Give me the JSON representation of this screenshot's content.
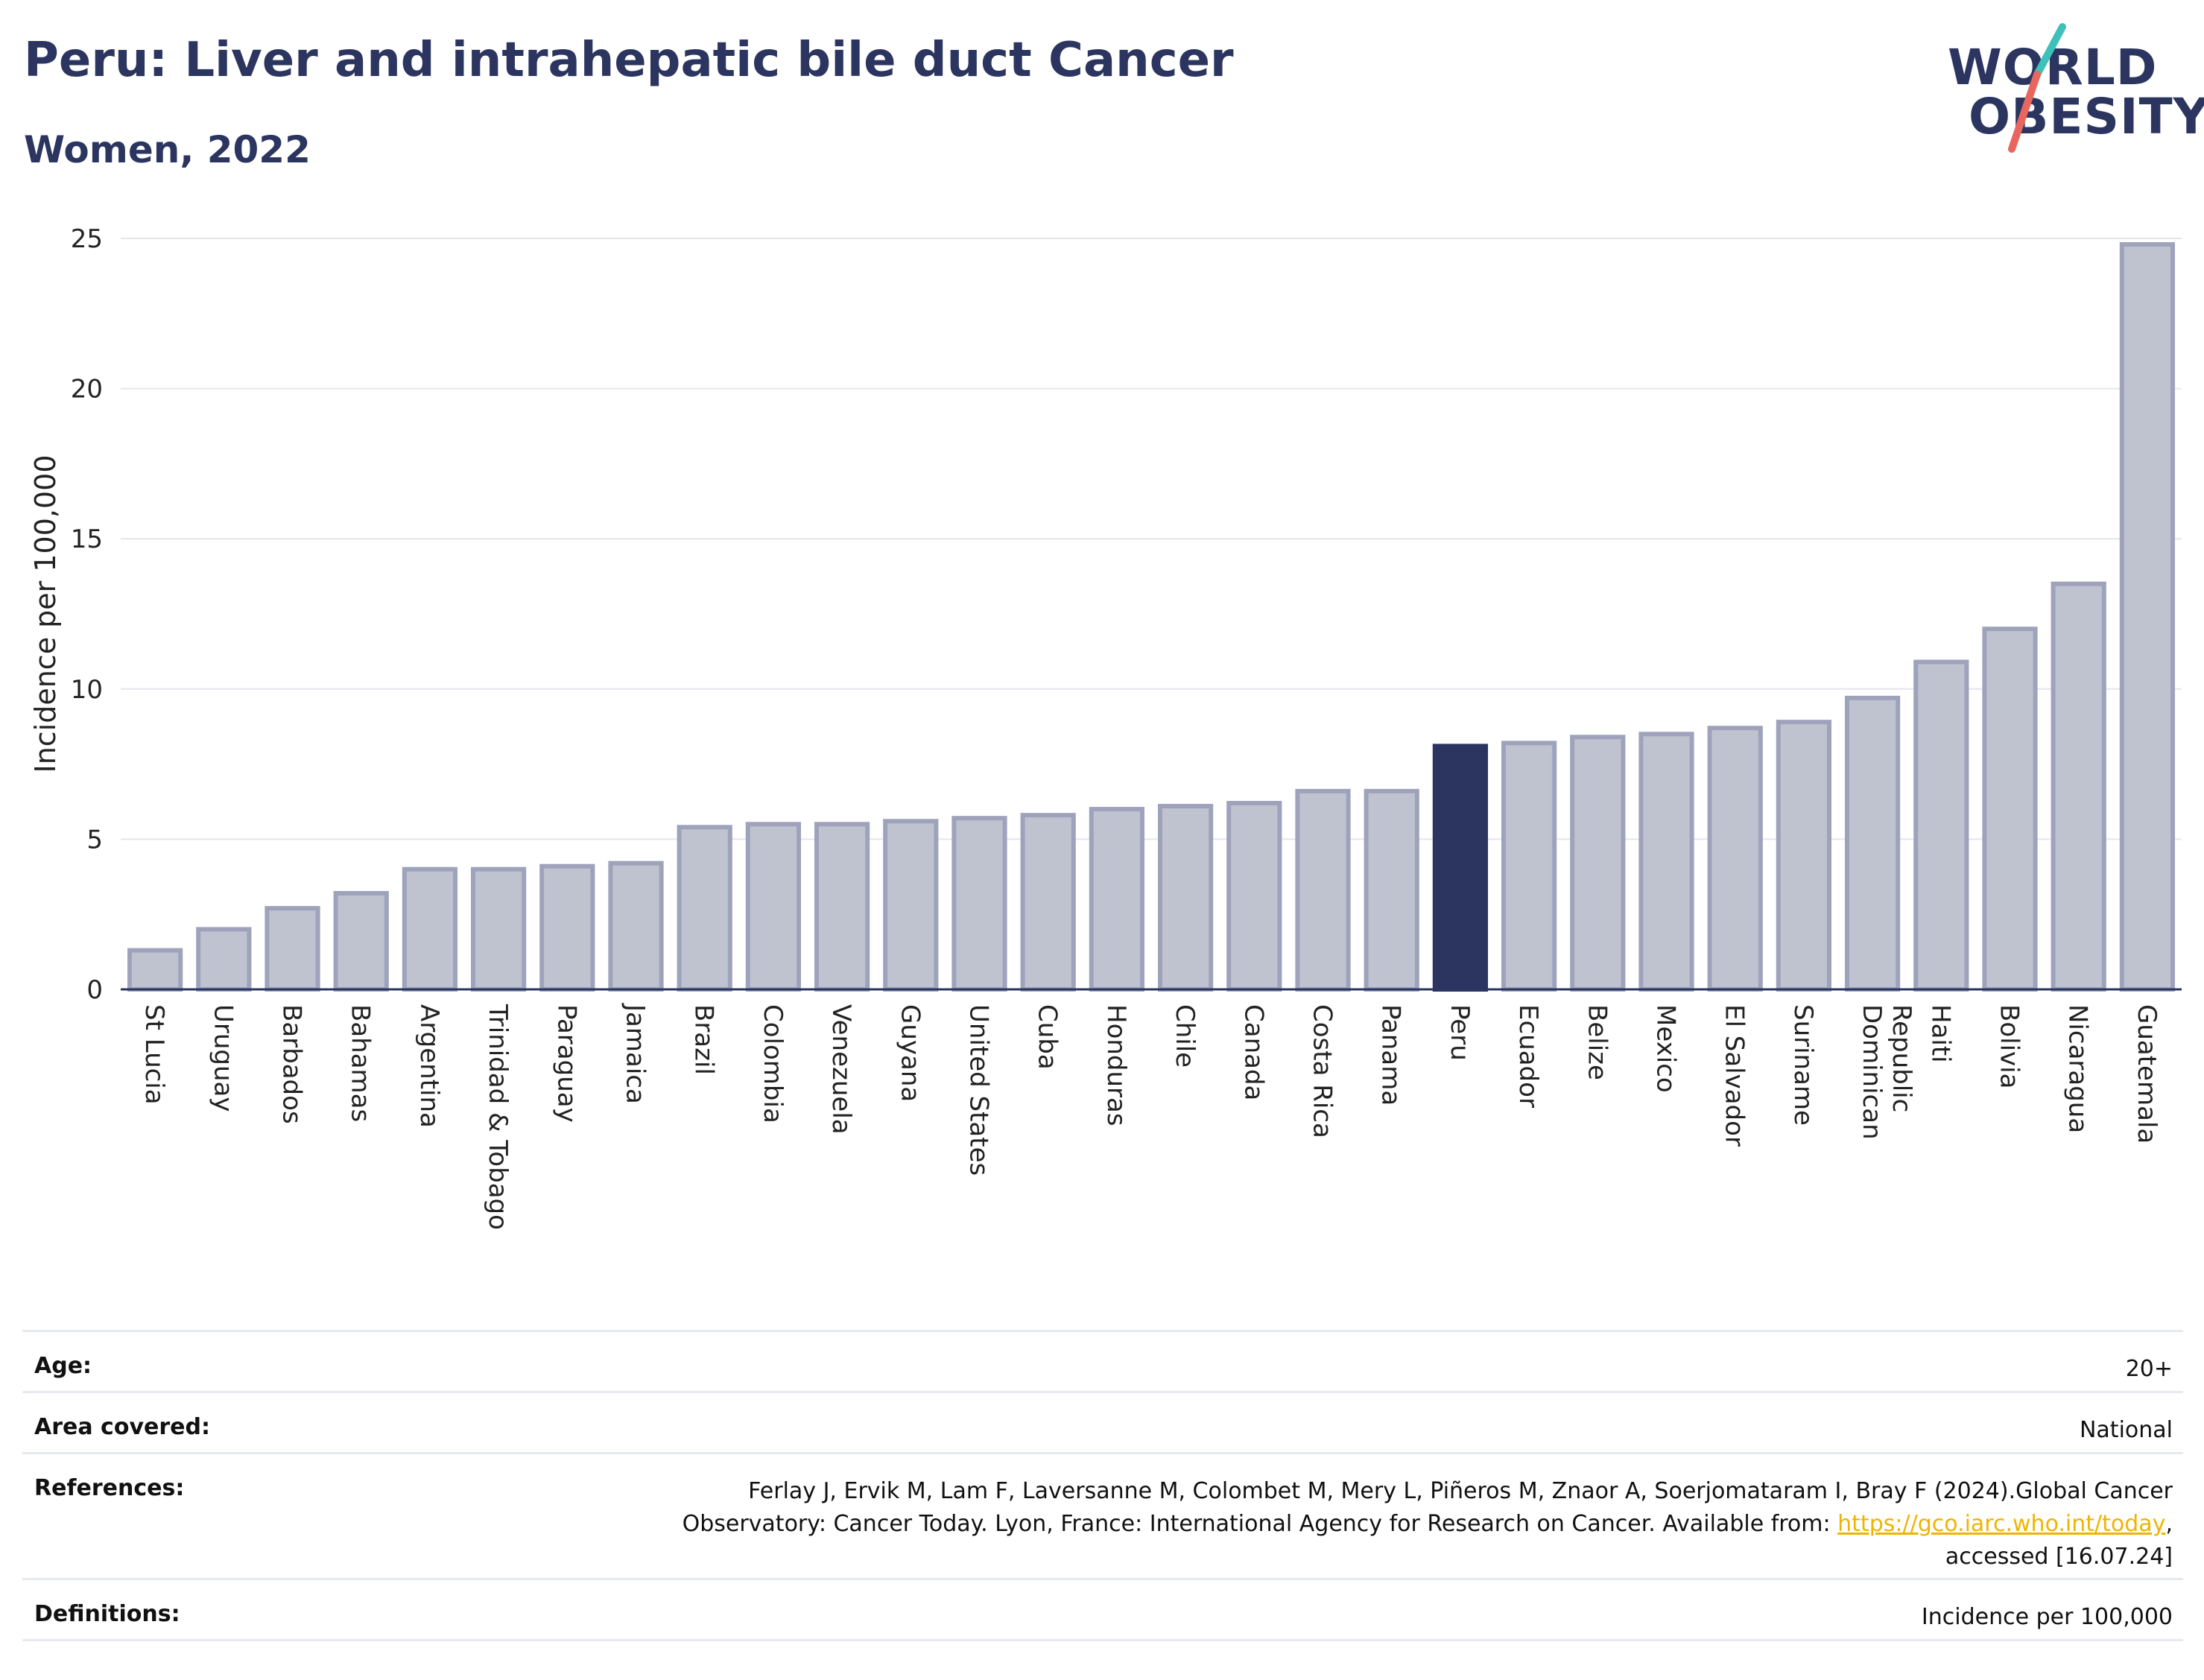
{
  "header": {
    "title": "Peru: Liver and intrahepatic bile duct Cancer",
    "subtitle": "Women, 2022"
  },
  "logo": {
    "line1": "WORLD",
    "line2": "OBESITY",
    "accent_colors": [
      "#3ec1b8",
      "#e8665d"
    ]
  },
  "chart_data": {
    "type": "bar",
    "ylabel": "Incidence per 100,000",
    "xlabel": "",
    "ylim": [
      0,
      25
    ],
    "yticks": [
      0,
      5,
      10,
      15,
      20,
      25
    ],
    "grid": true,
    "highlight": "Peru",
    "colors": {
      "bar": "#bfc3d0",
      "bar_border": "#9ea3bb",
      "highlight": "#2b3560",
      "grid": "#e4e6ee",
      "axis": "#2b3560"
    },
    "categories": [
      "St Lucia",
      "Uruguay",
      "Barbados",
      "Bahamas",
      "Argentina",
      "Trinidad & Tobago",
      "Paraguay",
      "Jamaica",
      "Brazil",
      "Colombia",
      "Venezuela",
      "Guyana",
      "United States",
      "Cuba",
      "Honduras",
      "Chile",
      "Canada",
      "Costa Rica",
      "Panama",
      "Peru",
      "Ecuador",
      "Belize",
      "Mexico",
      "El Salvador",
      "Suriname",
      "Dominican Republic",
      "Haiti",
      "Bolivia",
      "Nicaragua",
      "Guatemala"
    ],
    "values": [
      1.3,
      2.0,
      2.7,
      3.2,
      4.0,
      4.0,
      4.1,
      4.2,
      5.4,
      5.5,
      5.5,
      5.6,
      5.7,
      5.8,
      6.0,
      6.1,
      6.2,
      6.6,
      6.6,
      8.1,
      8.2,
      8.4,
      8.5,
      8.7,
      8.9,
      9.7,
      10.9,
      12.0,
      13.5,
      24.8
    ]
  },
  "meta": {
    "age": {
      "label": "Age:",
      "value": "20+"
    },
    "area": {
      "label": "Area covered:",
      "value": "National"
    },
    "references": {
      "label": "References:",
      "line1": "Ferlay J, Ervik M, Lam F, Laversanne M, Colombet M, Mery L, Piñeros M, Znaor A, Soerjomataram I, Bray F (2024).Global Cancer",
      "line2_prefix": "Observatory: Cancer Today. Lyon, France: International Agency for Research on Cancer. Available from: ",
      "link": "https://gco.iarc.who.int/today",
      "line2_suffix": ",",
      "line3": "accessed [16.07.24]"
    },
    "definitions": {
      "label": "Definitions:",
      "value": "Incidence per 100,000"
    }
  }
}
